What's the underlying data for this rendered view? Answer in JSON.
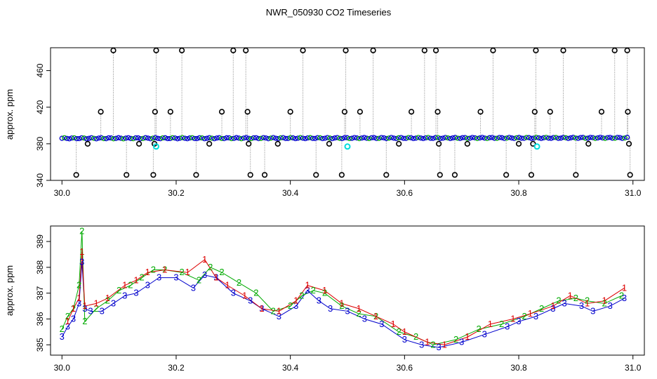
{
  "title": "NWR_050930  CO2 Timeseries",
  "chart_data": [
    {
      "type": "scatter",
      "ylabel": "approx. ppm",
      "xlim": [
        29.98,
        31.02
      ],
      "ylim": [
        340,
        485
      ],
      "x_ticks": [
        30.0,
        30.2,
        30.4,
        30.6,
        30.8,
        31.0
      ],
      "x_tick_labels": [
        "30.0",
        "30.2",
        "30.4",
        "30.6",
        "30.8",
        "31.0"
      ],
      "y_ticks": [
        340,
        380,
        420,
        460
      ],
      "y_tick_labels": [
        "340",
        "380",
        "420",
        "460"
      ],
      "colors": {
        "baseline": "#0000cc",
        "baseline_alt": "#00aa00",
        "outlier": "#000000",
        "flag": "#00dddd",
        "spike": "#888888"
      },
      "baseline": {
        "x_start": 30.0,
        "x_end": 30.99,
        "y_start": 386.0,
        "y_end": 386.5
      },
      "outliers": [
        {
          "x": 30.025,
          "y": 346
        },
        {
          "x": 30.045,
          "y": 380
        },
        {
          "x": 30.068,
          "y": 415
        },
        {
          "x": 30.09,
          "y": 482
        },
        {
          "x": 30.113,
          "y": 346
        },
        {
          "x": 30.135,
          "y": 380
        },
        {
          "x": 30.16,
          "y": 346
        },
        {
          "x": 30.162,
          "y": 380
        },
        {
          "x": 30.163,
          "y": 415
        },
        {
          "x": 30.165,
          "y": 482
        },
        {
          "x": 30.19,
          "y": 415
        },
        {
          "x": 30.21,
          "y": 482
        },
        {
          "x": 30.235,
          "y": 346
        },
        {
          "x": 30.258,
          "y": 380
        },
        {
          "x": 30.28,
          "y": 415
        },
        {
          "x": 30.3,
          "y": 482
        },
        {
          "x": 30.322,
          "y": 482
        },
        {
          "x": 30.325,
          "y": 415
        },
        {
          "x": 30.327,
          "y": 380
        },
        {
          "x": 30.33,
          "y": 346
        },
        {
          "x": 30.355,
          "y": 346
        },
        {
          "x": 30.378,
          "y": 380
        },
        {
          "x": 30.4,
          "y": 415
        },
        {
          "x": 30.422,
          "y": 482
        },
        {
          "x": 30.445,
          "y": 346
        },
        {
          "x": 30.468,
          "y": 380
        },
        {
          "x": 30.49,
          "y": 346
        },
        {
          "x": 30.495,
          "y": 415
        },
        {
          "x": 30.497,
          "y": 482
        },
        {
          "x": 30.522,
          "y": 415
        },
        {
          "x": 30.545,
          "y": 482
        },
        {
          "x": 30.568,
          "y": 346
        },
        {
          "x": 30.59,
          "y": 380
        },
        {
          "x": 30.612,
          "y": 415
        },
        {
          "x": 30.635,
          "y": 482
        },
        {
          "x": 30.655,
          "y": 482
        },
        {
          "x": 30.658,
          "y": 415
        },
        {
          "x": 30.66,
          "y": 380
        },
        {
          "x": 30.662,
          "y": 346
        },
        {
          "x": 30.688,
          "y": 346
        },
        {
          "x": 30.71,
          "y": 380
        },
        {
          "x": 30.733,
          "y": 415
        },
        {
          "x": 30.755,
          "y": 482
        },
        {
          "x": 30.778,
          "y": 346
        },
        {
          "x": 30.8,
          "y": 380
        },
        {
          "x": 30.822,
          "y": 346
        },
        {
          "x": 30.825,
          "y": 380
        },
        {
          "x": 30.828,
          "y": 415
        },
        {
          "x": 30.83,
          "y": 482
        },
        {
          "x": 30.855,
          "y": 415
        },
        {
          "x": 30.878,
          "y": 482
        },
        {
          "x": 30.9,
          "y": 346
        },
        {
          "x": 30.922,
          "y": 380
        },
        {
          "x": 30.945,
          "y": 415
        },
        {
          "x": 30.968,
          "y": 482
        },
        {
          "x": 30.99,
          "y": 482
        },
        {
          "x": 30.991,
          "y": 415
        },
        {
          "x": 30.993,
          "y": 380
        },
        {
          "x": 30.995,
          "y": 346
        }
      ],
      "flags": [
        {
          "x": 30.165,
          "y": 377
        },
        {
          "x": 30.5,
          "y": 377
        },
        {
          "x": 30.832,
          "y": 377
        }
      ]
    },
    {
      "type": "line",
      "ylabel": "approx. ppm",
      "xlim": [
        29.98,
        31.02
      ],
      "ylim": [
        384.6,
        389.6
      ],
      "x_ticks": [
        30.0,
        30.2,
        30.4,
        30.6,
        30.8,
        31.0
      ],
      "x_tick_labels": [
        "30.0",
        "30.2",
        "30.4",
        "30.6",
        "30.8",
        "31.0"
      ],
      "y_ticks": [
        385,
        386,
        387,
        388,
        389
      ],
      "y_tick_labels": [
        "385",
        "386",
        "387",
        "388",
        "389"
      ],
      "colors": {
        "1": "#dd0000",
        "2": "#00aa00",
        "3": "#0000cc",
        "connector": "#7a3a8a"
      },
      "series": [
        {
          "marker": "3",
          "x": [
            30.0,
            30.01,
            30.02,
            30.03,
            30.035,
            30.04,
            30.05,
            30.07,
            30.09,
            30.11,
            30.13,
            30.15,
            30.17,
            30.2,
            30.23,
            30.25,
            30.27,
            30.3,
            30.33,
            30.35,
            30.38,
            30.41,
            30.43,
            30.45,
            30.47,
            30.5,
            30.53,
            30.56,
            30.6,
            30.63,
            30.66,
            30.7,
            30.74,
            30.78,
            30.8,
            30.83,
            30.86,
            30.88,
            30.91,
            30.93,
            30.96,
            30.985
          ],
          "y": [
            385.3,
            385.7,
            386.0,
            386.6,
            388.2,
            386.4,
            386.3,
            386.3,
            386.6,
            386.9,
            387.0,
            387.3,
            387.6,
            387.6,
            387.2,
            387.7,
            387.6,
            387.0,
            386.7,
            386.4,
            386.1,
            386.5,
            387.1,
            386.7,
            386.4,
            386.3,
            386.0,
            385.8,
            385.2,
            385.0,
            384.9,
            385.1,
            385.4,
            385.7,
            385.9,
            386.1,
            386.4,
            386.6,
            386.5,
            386.3,
            386.5,
            386.8
          ]
        },
        {
          "marker": "2",
          "x": [
            30.0,
            30.01,
            30.02,
            30.03,
            30.035,
            30.04,
            30.06,
            30.08,
            30.1,
            30.12,
            30.14,
            30.16,
            30.18,
            30.21,
            30.24,
            30.26,
            30.28,
            30.31,
            30.34,
            30.37,
            30.4,
            30.42,
            30.44,
            30.46,
            30.49,
            30.52,
            30.55,
            30.59,
            30.62,
            30.65,
            30.69,
            30.73,
            30.77,
            30.81,
            30.84,
            30.87,
            30.9,
            30.92,
            30.95,
            30.98
          ],
          "y": [
            385.6,
            386.1,
            386.4,
            387.3,
            389.4,
            385.9,
            386.4,
            386.7,
            387.1,
            387.3,
            387.6,
            387.9,
            387.9,
            387.8,
            387.5,
            388.0,
            387.8,
            387.4,
            387.0,
            386.3,
            386.5,
            386.9,
            387.1,
            387.0,
            386.5,
            386.2,
            386.1,
            385.5,
            385.3,
            385.0,
            385.2,
            385.6,
            385.8,
            386.1,
            386.4,
            386.7,
            386.8,
            386.7,
            386.6,
            386.9
          ]
        },
        {
          "marker": "1",
          "x": [
            30.01,
            30.02,
            30.03,
            30.035,
            30.04,
            30.06,
            30.08,
            30.11,
            30.13,
            30.15,
            30.18,
            30.22,
            30.25,
            30.27,
            30.29,
            30.32,
            30.35,
            30.38,
            30.41,
            30.43,
            30.46,
            30.49,
            30.52,
            30.55,
            30.58,
            30.6,
            30.64,
            30.67,
            30.71,
            30.75,
            30.79,
            30.82,
            30.86,
            30.89,
            30.92,
            30.95,
            30.985
          ],
          "y": [
            385.9,
            386.4,
            386.8,
            388.6,
            386.5,
            386.6,
            386.8,
            387.3,
            387.5,
            387.8,
            387.9,
            387.8,
            388.3,
            387.6,
            387.3,
            386.9,
            386.4,
            386.3,
            386.7,
            387.3,
            387.1,
            386.6,
            386.4,
            386.1,
            385.8,
            385.5,
            385.1,
            385.0,
            385.3,
            385.8,
            386.0,
            386.2,
            386.5,
            386.9,
            386.6,
            386.7,
            387.2
          ]
        }
      ]
    }
  ]
}
